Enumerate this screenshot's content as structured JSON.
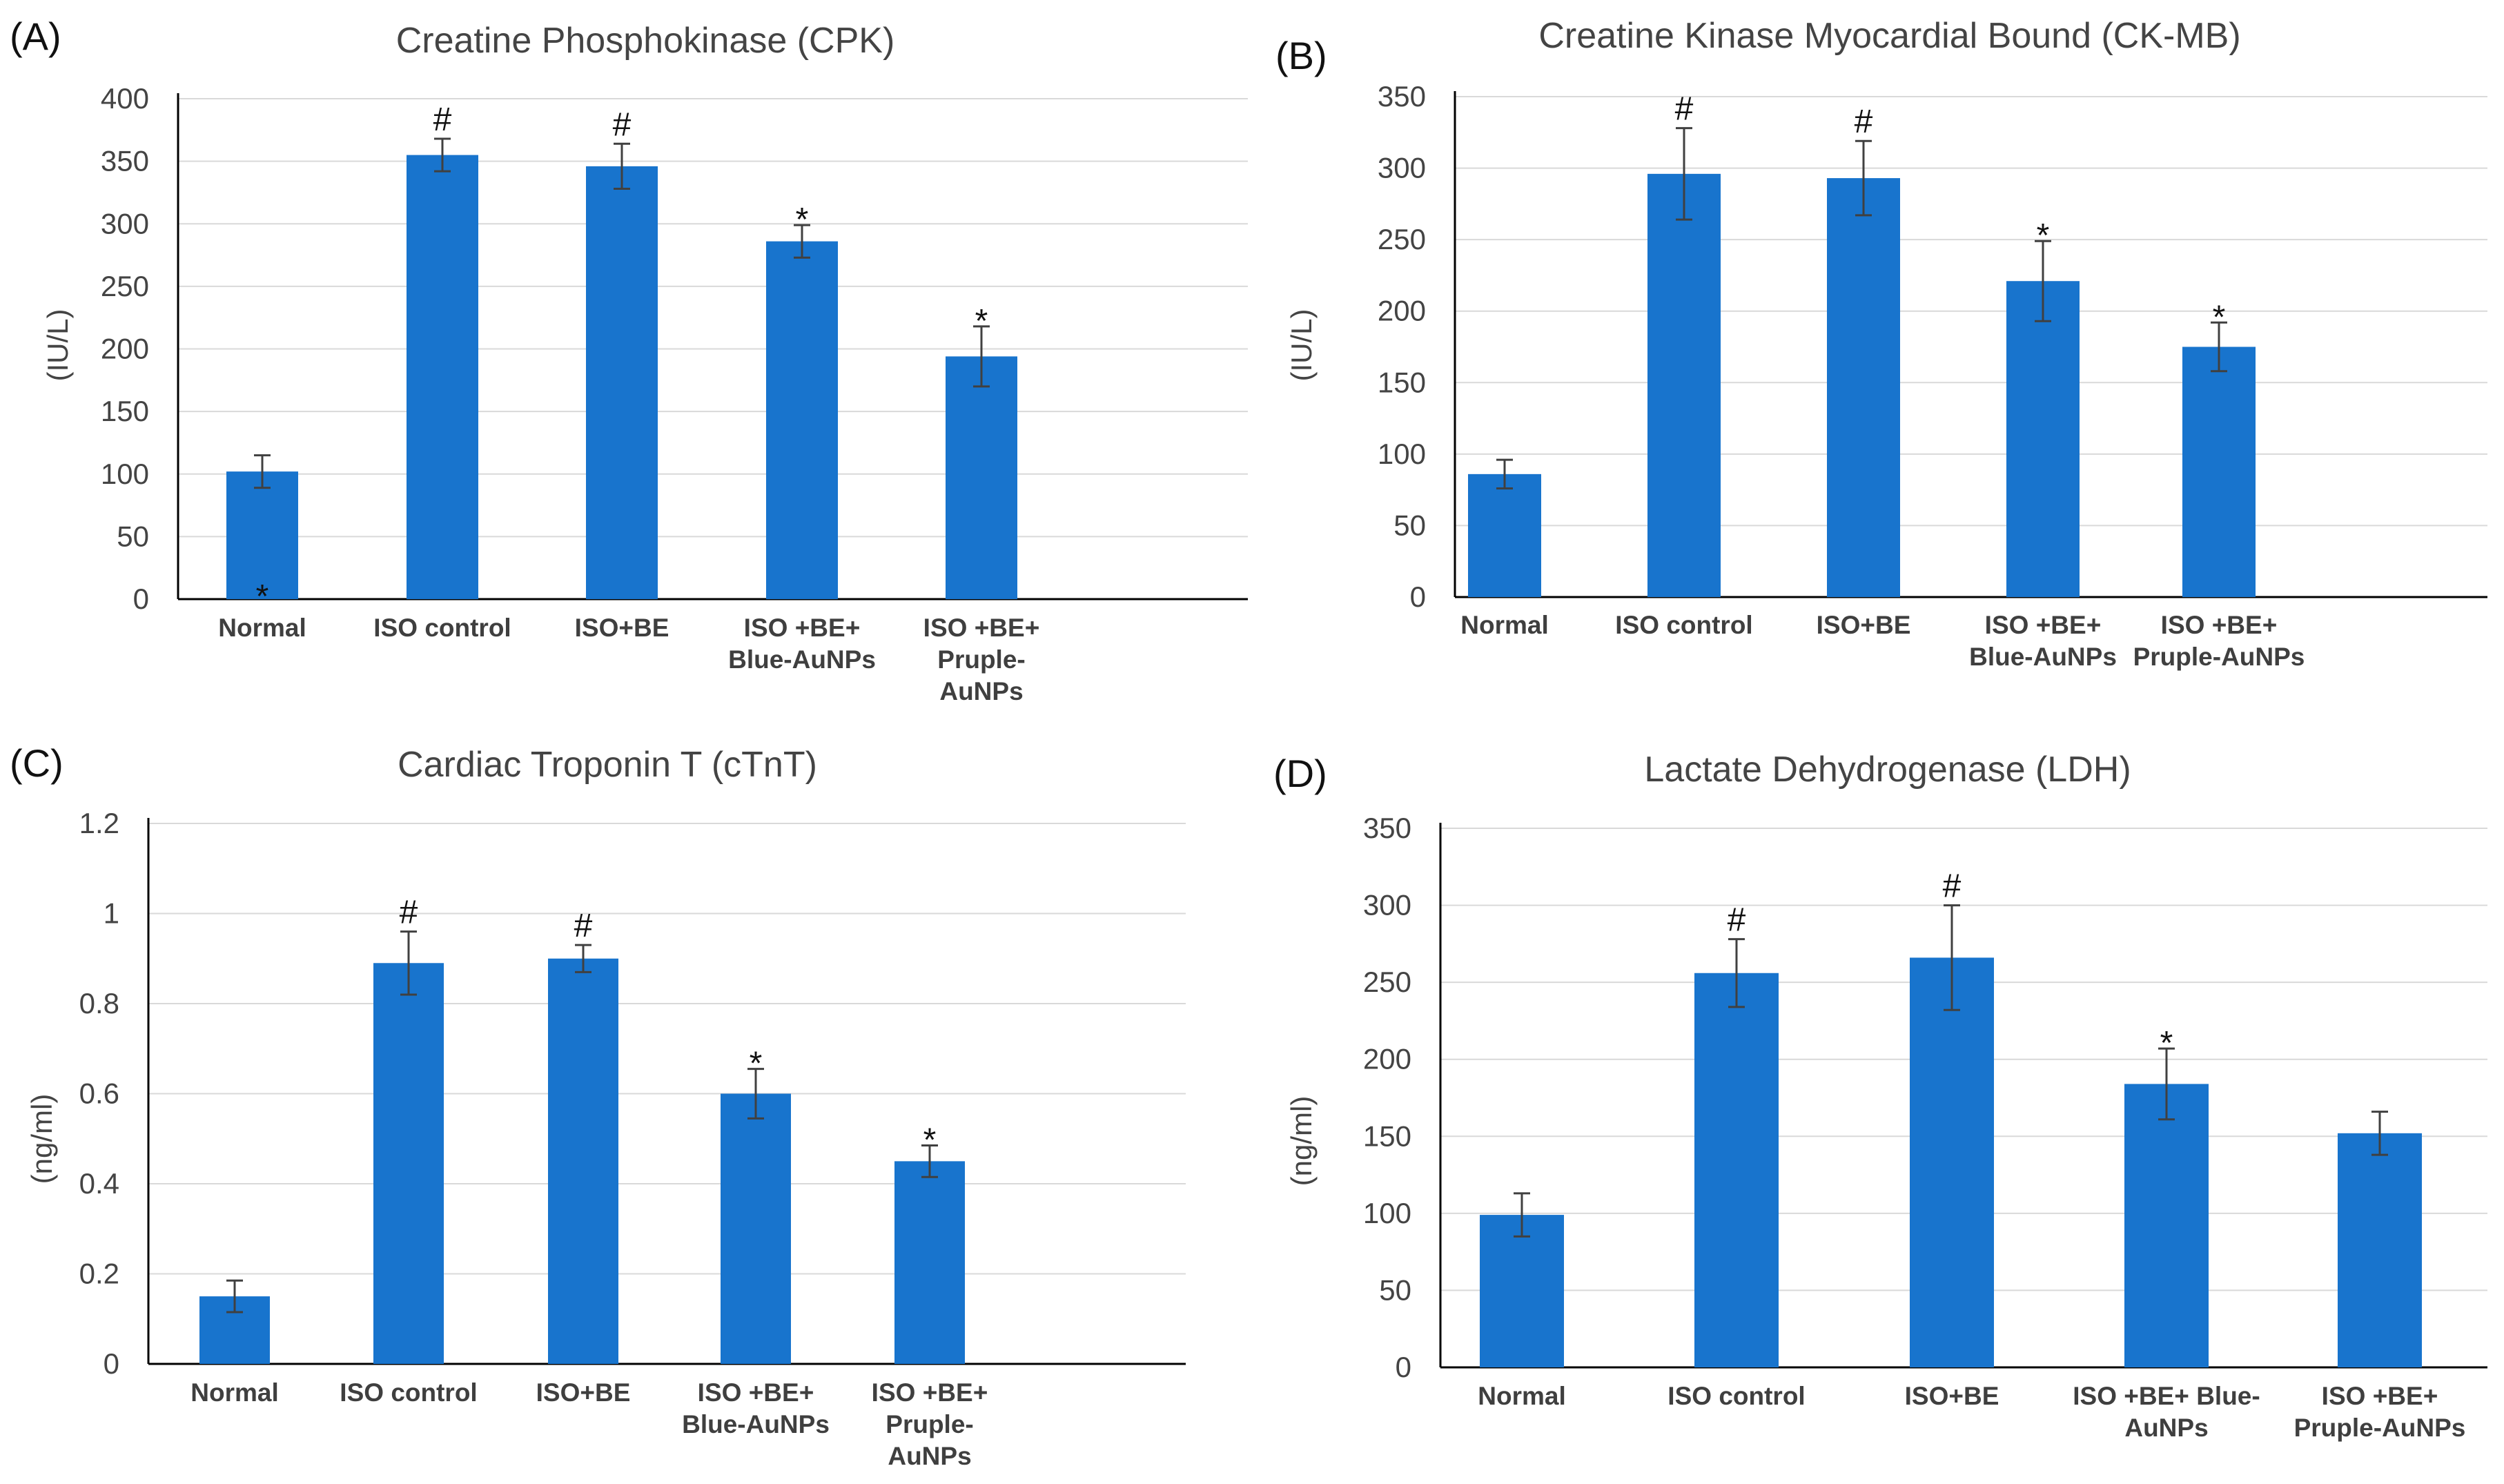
{
  "chart_data": [
    {
      "type": "bar",
      "panel": "(A)",
      "title": "Creatine Phosphokinase (CPK)",
      "ylabel": "(IU/L)",
      "xlabel": "",
      "ylim": [
        0,
        400
      ],
      "yticks": [
        "0",
        "50",
        "100",
        "150",
        "200",
        "250",
        "300",
        "350",
        "400"
      ],
      "categories": [
        [
          "Normal"
        ],
        [
          "ISO control"
        ],
        [
          "ISO+BE"
        ],
        [
          "ISO +BE+",
          "Blue-AuNPs"
        ],
        [
          "ISO +BE+",
          "Pruple-",
          "AuNPs"
        ]
      ],
      "values": [
        102,
        355,
        346,
        286,
        194
      ],
      "errors": [
        13,
        13,
        18,
        13,
        24
      ],
      "markers": [
        "*",
        "#",
        "#",
        "*",
        "*"
      ],
      "grid": true
    },
    {
      "type": "bar",
      "panel": "(B)",
      "title": "Creatine Kinase Myocardial Bound (CK-MB)",
      "ylabel": "(IU/L)",
      "xlabel": "",
      "ylim": [
        0,
        350
      ],
      "yticks": [
        "0",
        "50",
        "100",
        "150",
        "200",
        "250",
        "300",
        "350"
      ],
      "categories": [
        [
          "Normal"
        ],
        [
          "ISO control"
        ],
        [
          "ISO+BE"
        ],
        [
          "ISO +BE+",
          "Blue-AuNPs"
        ],
        [
          "ISO +BE+",
          "Pruple-AuNPs"
        ]
      ],
      "values": [
        86,
        296,
        293,
        221,
        175
      ],
      "errors": [
        10,
        32,
        26,
        28,
        17
      ],
      "markers": [
        "",
        "#",
        "#",
        "*",
        "*"
      ],
      "grid": true
    },
    {
      "type": "bar",
      "panel": "(C)",
      "title": "Cardiac Troponin T (cTnT)",
      "ylabel": "(ng/ml)",
      "xlabel": "",
      "ylim": [
        0,
        1.2
      ],
      "yticks": [
        "0",
        "0.2",
        "0.4",
        "0.6",
        "0.8",
        "1",
        "1.2"
      ],
      "categories": [
        [
          "Normal"
        ],
        [
          "ISO control"
        ],
        [
          "ISO+BE"
        ],
        [
          "ISO +BE+",
          "Blue-AuNPs"
        ],
        [
          "ISO +BE+",
          "Pruple-",
          "AuNPs"
        ]
      ],
      "values": [
        0.15,
        0.89,
        0.9,
        0.6,
        0.45
      ],
      "errors": [
        0.035,
        0.07,
        0.03,
        0.055,
        0.035
      ],
      "markers": [
        "",
        "#",
        "#",
        "*",
        "*"
      ],
      "grid": true
    },
    {
      "type": "bar",
      "panel": "(D)",
      "title": "Lactate Dehydrogenase (LDH)",
      "ylabel": "(ng/ml)",
      "xlabel": "",
      "ylim": [
        0,
        350
      ],
      "yticks": [
        "0",
        "50",
        "100",
        "150",
        "200",
        "250",
        "300",
        "350"
      ],
      "categories": [
        [
          "Normal"
        ],
        [
          "ISO control"
        ],
        [
          "ISO+BE"
        ],
        [
          "ISO +BE+ Blue-",
          "AuNPs"
        ],
        [
          "ISO +BE+",
          "Pruple-AuNPs"
        ]
      ],
      "values": [
        99,
        256,
        266,
        184,
        152
      ],
      "errors": [
        14,
        22,
        34,
        23,
        14
      ],
      "markers": [
        "",
        "#",
        "#",
        "*",
        ""
      ],
      "grid": true
    }
  ]
}
